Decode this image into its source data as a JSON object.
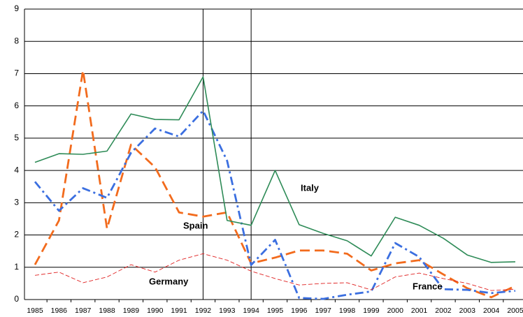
{
  "chart_data": {
    "type": "line",
    "categories": [
      "1985",
      "1986",
      "1987",
      "1988",
      "1989",
      "1990",
      "1991",
      "1992",
      "1993",
      "1994",
      "1995",
      "1996",
      "1997",
      "1998",
      "1999",
      "2000",
      "2001",
      "2002",
      "2003",
      "2004",
      "2005"
    ],
    "series": [
      {
        "name": "Italy",
        "color": "#2e8b57",
        "line_style": "solid",
        "values": [
          4.25,
          4.52,
          4.5,
          4.6,
          5.75,
          5.58,
          5.57,
          6.9,
          2.45,
          2.3,
          4.0,
          2.32,
          2.05,
          1.82,
          1.35,
          2.55,
          2.3,
          1.9,
          1.38,
          1.15,
          1.17
        ]
      },
      {
        "name": "Spain",
        "color": "#f26b1d",
        "line_style": "dashed",
        "values": [
          1.08,
          2.45,
          7.1,
          2.2,
          4.8,
          4.1,
          2.7,
          2.57,
          2.7,
          1.12,
          1.3,
          1.52,
          1.52,
          1.42,
          0.9,
          1.12,
          1.22,
          0.78,
          0.35,
          0.07,
          0.42
        ]
      },
      {
        "name": "France",
        "color": "#3b6fe0",
        "line_style": "dashdot",
        "values": [
          3.65,
          2.75,
          3.45,
          3.15,
          4.55,
          5.3,
          5.05,
          5.85,
          4.3,
          1.07,
          1.85,
          0.05,
          0.02,
          0.15,
          0.25,
          1.75,
          1.32,
          0.32,
          0.3,
          0.2,
          0.27
        ]
      },
      {
        "name": "Germany",
        "color": "#e02020",
        "line_style": "thin-dashed",
        "values": [
          0.75,
          0.85,
          0.52,
          0.7,
          1.08,
          0.85,
          1.22,
          1.42,
          1.22,
          0.88,
          0.65,
          0.45,
          0.5,
          0.52,
          0.3,
          0.7,
          0.82,
          0.65,
          0.5,
          0.28,
          0.32
        ]
      }
    ],
    "vertical_lines": [
      "1992",
      "1994"
    ],
    "ylim": [
      0,
      9
    ],
    "yticks": [
      0,
      1,
      2,
      3,
      4,
      5,
      6,
      7,
      8,
      9
    ],
    "grid": true
  }
}
